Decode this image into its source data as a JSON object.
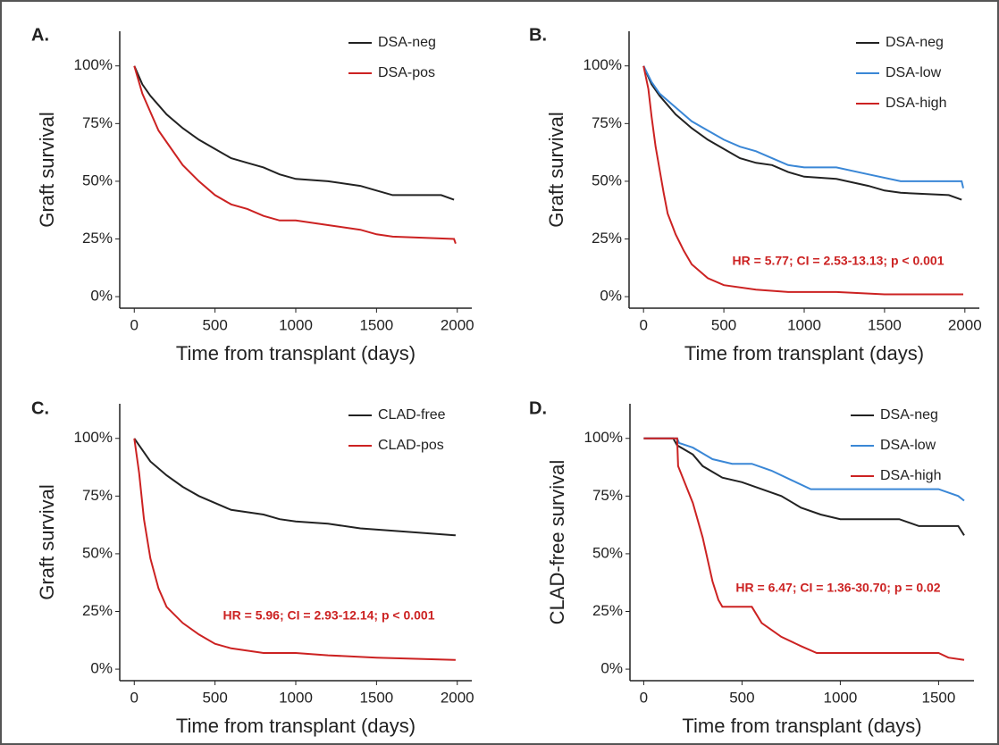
{
  "chart_data": [
    {
      "type": "line",
      "label": "A.",
      "xlabel": "Time from transplant (days)",
      "ylabel": "Graft survival",
      "xlim": [
        -90,
        2090
      ],
      "ylim": [
        -5,
        115
      ],
      "xticks": [
        0,
        500,
        1000,
        1500,
        2000
      ],
      "yticks": [
        {
          "value": 0,
          "label": "0%"
        },
        {
          "value": 25,
          "label": "25%"
        },
        {
          "value": 50,
          "label": "50%"
        },
        {
          "value": 75,
          "label": "75%"
        },
        {
          "value": 100,
          "label": "100%"
        }
      ],
      "series": [
        {
          "name": "DSA-neg",
          "color": "#222222",
          "x": [
            0,
            50,
            100,
            150,
            200,
            300,
            400,
            500,
            600,
            700,
            800,
            900,
            1000,
            1200,
            1400,
            1500,
            1600,
            1900,
            1980
          ],
          "values": [
            100,
            92,
            87,
            83,
            79,
            73,
            68,
            64,
            60,
            58,
            56,
            53,
            51,
            50,
            48,
            46,
            44,
            44,
            42
          ]
        },
        {
          "name": "DSA-pos",
          "color": "#cc2222",
          "x": [
            0,
            50,
            100,
            150,
            200,
            300,
            400,
            500,
            600,
            700,
            800,
            900,
            1000,
            1200,
            1400,
            1500,
            1600,
            1980,
            1990
          ],
          "values": [
            100,
            88,
            80,
            72,
            67,
            57,
            50,
            44,
            40,
            38,
            35,
            33,
            33,
            31,
            29,
            27,
            26,
            25,
            23
          ]
        }
      ]
    },
    {
      "type": "line",
      "label": "B.",
      "xlabel": "Time from transplant (days)",
      "ylabel": "Graft survival",
      "annotation": "HR = 5.77; CI = 2.53-13.13; p < 0.001",
      "xlim": [
        -90,
        2090
      ],
      "ylim": [
        -5,
        115
      ],
      "xticks": [
        0,
        500,
        1000,
        1500,
        2000
      ],
      "yticks": [
        {
          "value": 0,
          "label": "0%"
        },
        {
          "value": 25,
          "label": "25%"
        },
        {
          "value": 50,
          "label": "50%"
        },
        {
          "value": 75,
          "label": "75%"
        },
        {
          "value": 100,
          "label": "100%"
        }
      ],
      "series": [
        {
          "name": "DSA-neg",
          "color": "#222222",
          "x": [
            0,
            50,
            100,
            150,
            200,
            300,
            400,
            500,
            600,
            700,
            800,
            900,
            1000,
            1200,
            1400,
            1500,
            1600,
            1900,
            1980
          ],
          "values": [
            100,
            92,
            87,
            83,
            79,
            73,
            68,
            64,
            60,
            58,
            57,
            54,
            52,
            51,
            48,
            46,
            45,
            44,
            42
          ]
        },
        {
          "name": "DSA-low",
          "color": "#3a87d6",
          "x": [
            0,
            50,
            100,
            200,
            300,
            400,
            500,
            600,
            700,
            800,
            900,
            1000,
            1200,
            1400,
            1600,
            1980,
            1990
          ],
          "values": [
            100,
            93,
            88,
            82,
            76,
            72,
            68,
            65,
            63,
            60,
            57,
            56,
            56,
            53,
            50,
            50,
            47
          ]
        },
        {
          "name": "DSA-high",
          "color": "#cc2222",
          "x": [
            0,
            30,
            50,
            75,
            100,
            125,
            150,
            200,
            250,
            300,
            400,
            500,
            700,
            900,
            1200,
            1500,
            1990
          ],
          "values": [
            100,
            90,
            78,
            65,
            55,
            45,
            36,
            27,
            20,
            14,
            8,
            5,
            3,
            2,
            2,
            1,
            1
          ]
        }
      ]
    },
    {
      "type": "line",
      "label": "C.",
      "xlabel": "Time from transplant (days)",
      "ylabel": "Graft survival",
      "annotation": "HR = 5.96; CI = 2.93-12.14; p < 0.001",
      "xlim": [
        -90,
        2090
      ],
      "ylim": [
        -5,
        115
      ],
      "xticks": [
        0,
        500,
        1000,
        1500,
        2000
      ],
      "yticks": [
        {
          "value": 0,
          "label": "0%"
        },
        {
          "value": 25,
          "label": "25%"
        },
        {
          "value": 50,
          "label": "50%"
        },
        {
          "value": 75,
          "label": "75%"
        },
        {
          "value": 100,
          "label": "100%"
        }
      ],
      "series": [
        {
          "name": "CLAD-free",
          "color": "#222222",
          "x": [
            0,
            50,
            100,
            200,
            300,
            400,
            500,
            600,
            700,
            800,
            900,
            1000,
            1200,
            1400,
            1600,
            1990
          ],
          "values": [
            100,
            95,
            90,
            84,
            79,
            75,
            72,
            69,
            68,
            67,
            65,
            64,
            63,
            61,
            60,
            58
          ]
        },
        {
          "name": "CLAD-pos",
          "color": "#cc2222",
          "x": [
            0,
            30,
            60,
            100,
            150,
            200,
            300,
            400,
            500,
            600,
            800,
            1000,
            1200,
            1500,
            1990
          ],
          "values": [
            100,
            85,
            65,
            48,
            35,
            27,
            20,
            15,
            11,
            9,
            7,
            7,
            6,
            5,
            4
          ]
        }
      ]
    },
    {
      "type": "line",
      "label": "D.",
      "xlabel": "Time from transplant (days)",
      "ylabel": "CLAD-free survival",
      "annotation": "HR = 6.47; CI = 1.36-30.70; p = 0.02",
      "xlim": [
        -70,
        1680
      ],
      "ylim": [
        -5,
        115
      ],
      "xticks": [
        0,
        500,
        1000,
        1500
      ],
      "yticks": [
        {
          "value": 0,
          "label": "0%"
        },
        {
          "value": 25,
          "label": "25%"
        },
        {
          "value": 50,
          "label": "50%"
        },
        {
          "value": 75,
          "label": "75%"
        },
        {
          "value": 100,
          "label": "100%"
        }
      ],
      "series": [
        {
          "name": "DSA-neg",
          "color": "#222222",
          "x": [
            0,
            150,
            170,
            250,
            300,
            400,
            500,
            600,
            700,
            800,
            900,
            1000,
            1300,
            1400,
            1600,
            1630
          ],
          "values": [
            100,
            100,
            97,
            93,
            88,
            83,
            81,
            78,
            75,
            70,
            67,
            65,
            65,
            62,
            62,
            58
          ]
        },
        {
          "name": "DSA-low",
          "color": "#3a87d6",
          "x": [
            0,
            170,
            180,
            250,
            350,
            450,
            550,
            650,
            750,
            850,
            1500,
            1600,
            1630
          ],
          "values": [
            100,
            100,
            98,
            96,
            91,
            89,
            89,
            86,
            82,
            78,
            78,
            75,
            73
          ]
        },
        {
          "name": "DSA-high",
          "color": "#cc2222",
          "x": [
            0,
            170,
            175,
            250,
            300,
            350,
            380,
            400,
            550,
            600,
            700,
            800,
            880,
            1500,
            1550,
            1630
          ],
          "values": [
            100,
            100,
            88,
            72,
            57,
            38,
            30,
            27,
            27,
            20,
            14,
            10,
            7,
            7,
            5,
            4
          ]
        }
      ]
    }
  ]
}
